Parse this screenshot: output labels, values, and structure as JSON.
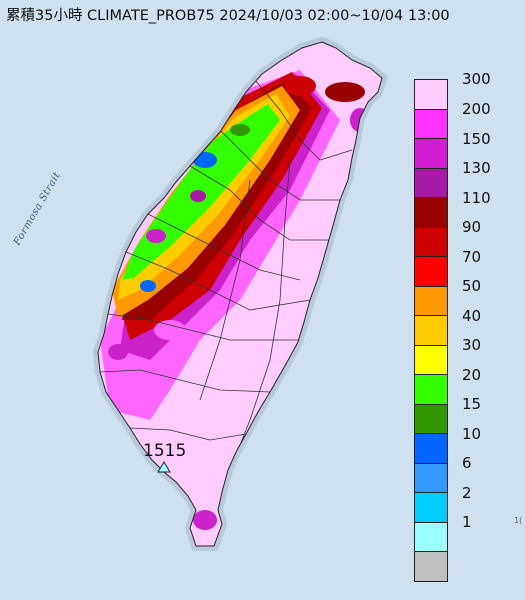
{
  "title": "累積35小時 CLIMATE_PROB75 2024/10/03 02:00~10/04 13:00",
  "sea_label": "Formosa Strait",
  "max_value_label": "1515",
  "edge_label": "1(",
  "legend": {
    "top_label": "300",
    "items": [
      {
        "label": "200",
        "color": "#ff33ff"
      },
      {
        "label": "150",
        "color": "#d41ed4"
      },
      {
        "label": "130",
        "color": "#a61aa6"
      },
      {
        "label": "110",
        "color": "#990000"
      },
      {
        "label": "90",
        "color": "#cc0000"
      },
      {
        "label": "70",
        "color": "#ff0000"
      },
      {
        "label": "50",
        "color": "#ff9900"
      },
      {
        "label": "40",
        "color": "#ffcc00"
      },
      {
        "label": "30",
        "color": "#ffff00"
      },
      {
        "label": "20",
        "color": "#33ff00"
      },
      {
        "label": "15",
        "color": "#339900"
      },
      {
        "label": "10",
        "color": "#0066ff"
      },
      {
        "label": "6",
        "color": "#3399ff"
      },
      {
        "label": "2",
        "color": "#00ccff"
      },
      {
        "label": "1",
        "color": "#99ffff"
      }
    ],
    "top_color": "#ffccff",
    "bottom_color": "#bfbfbf"
  },
  "colors": {
    "sea": "#cfe0ee",
    "land_base": "#ffccff"
  }
}
